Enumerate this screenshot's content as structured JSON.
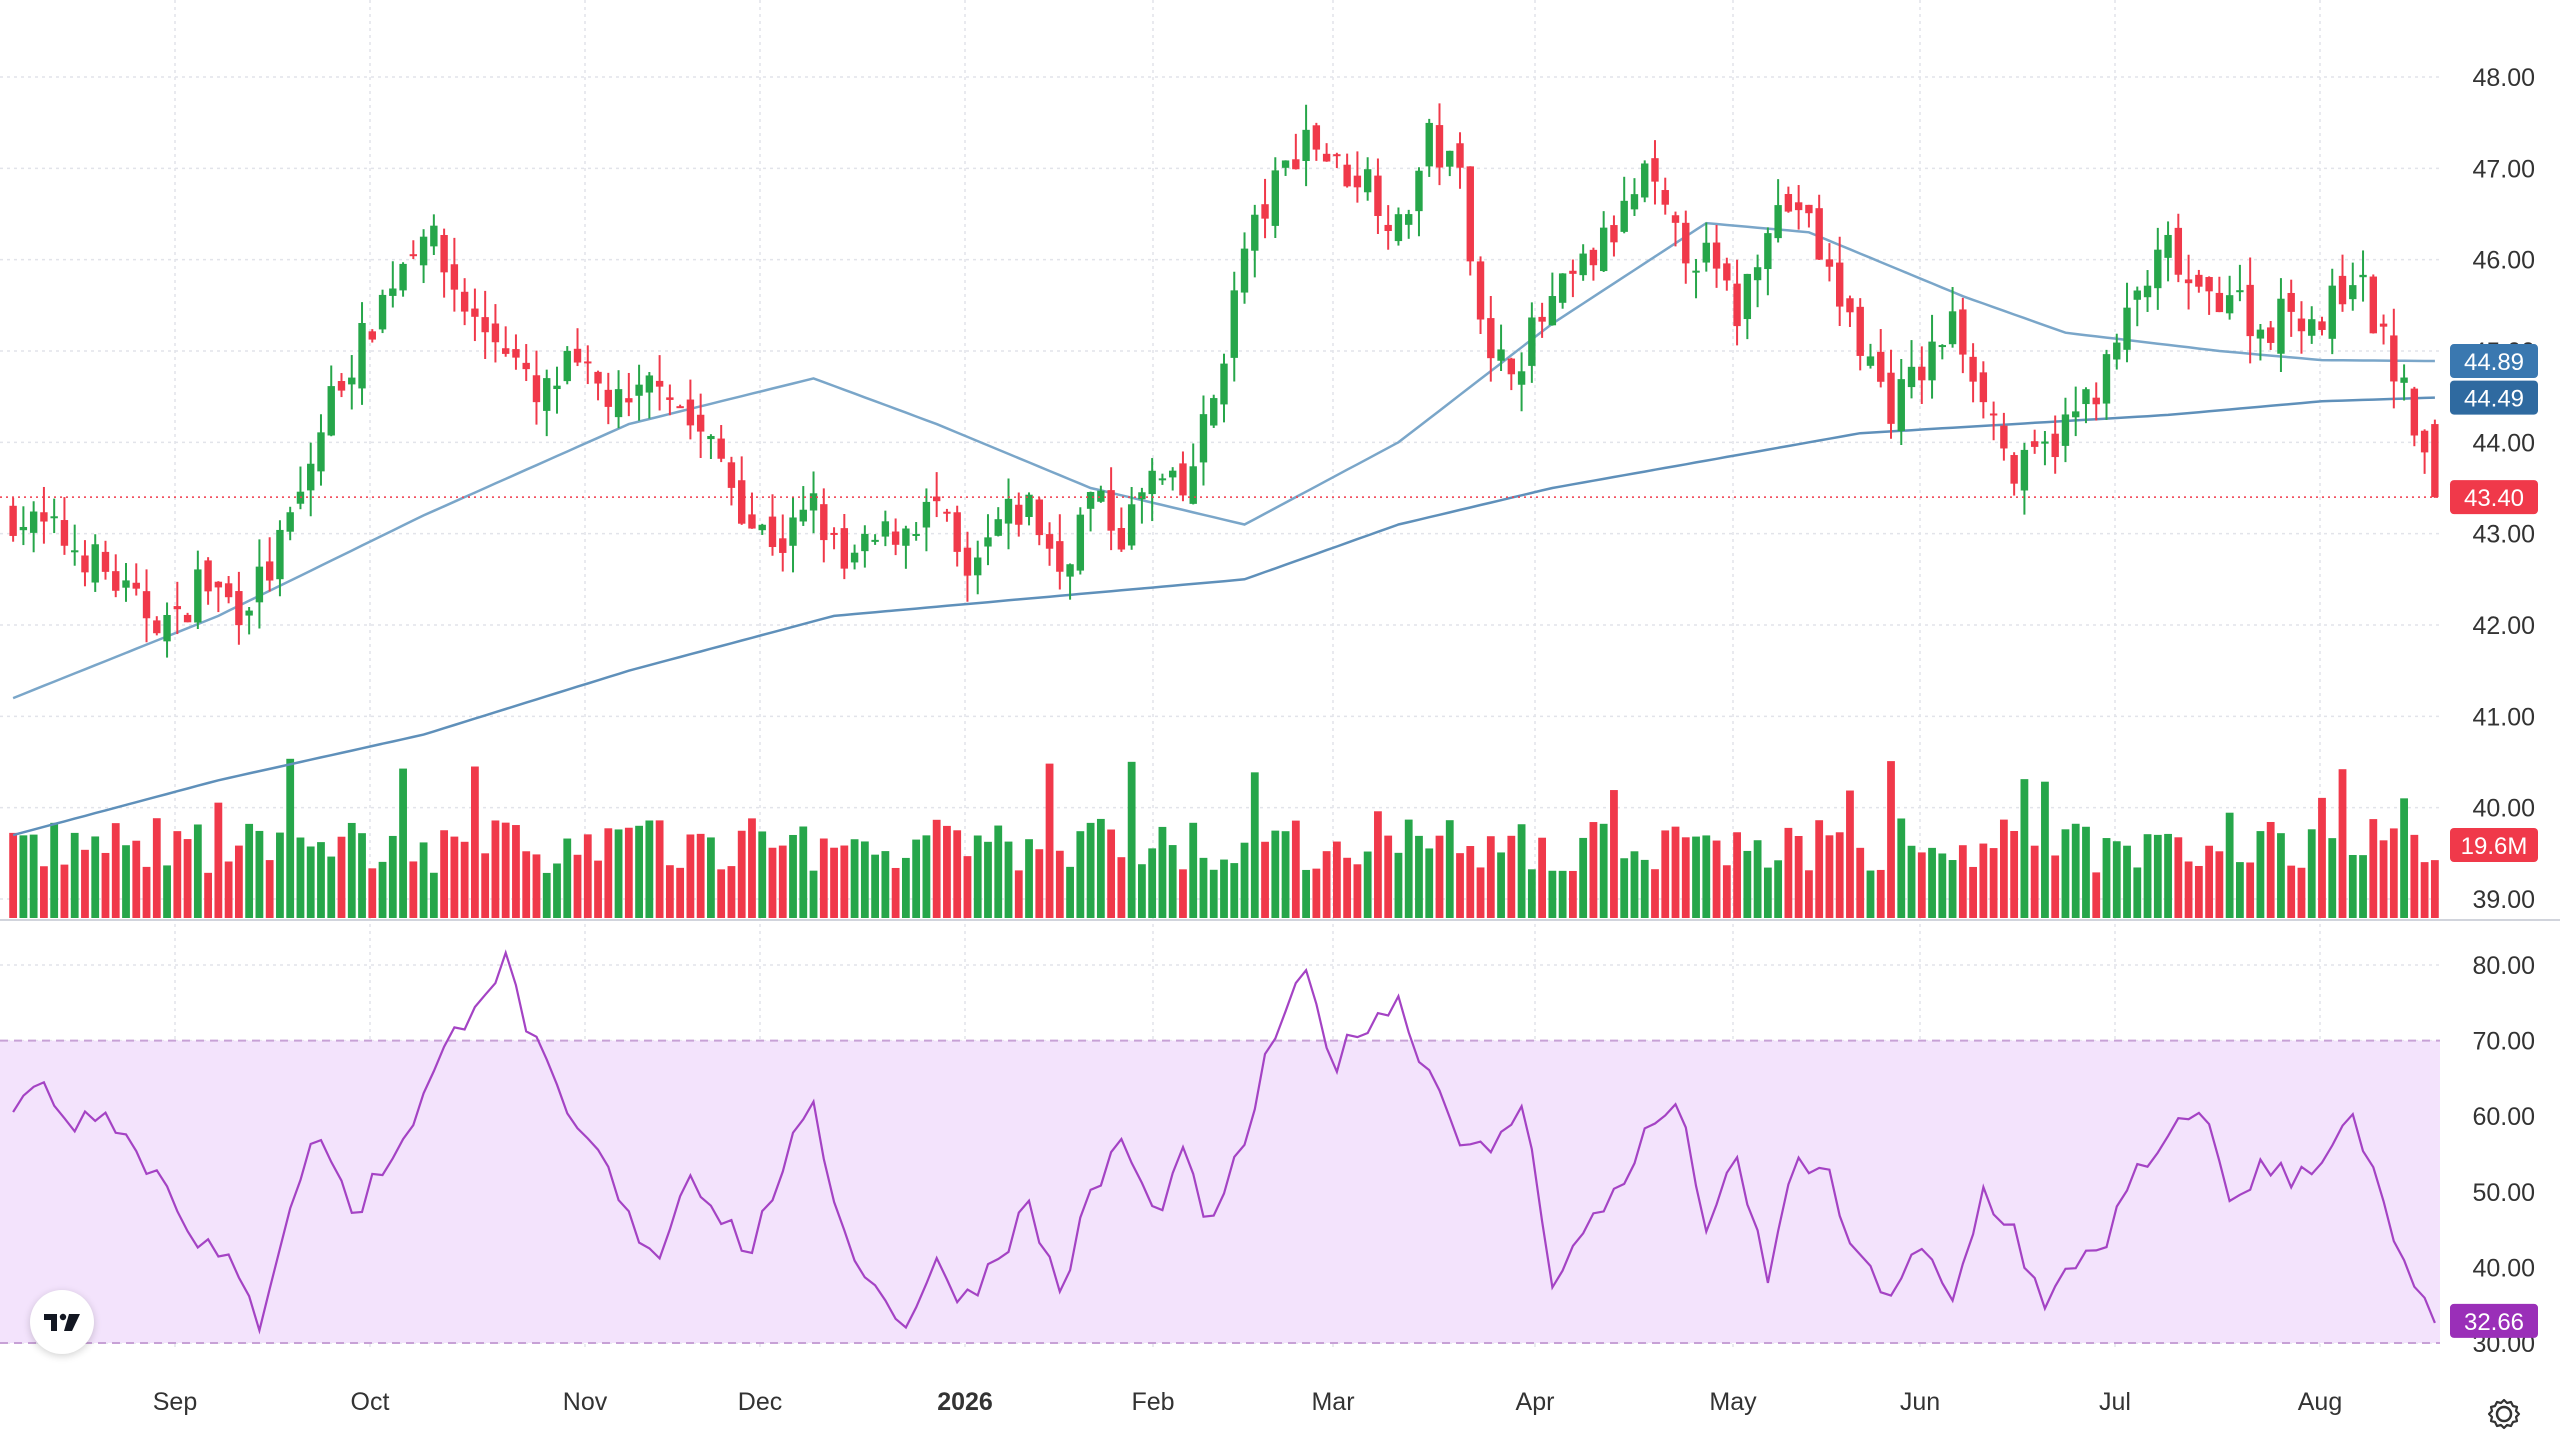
{
  "colors": {
    "up": "#26a64a",
    "down": "#f0394a",
    "ma_fast": "#7aa6c9",
    "ma_slow": "#5f90ba",
    "rsi_line": "#a443c4",
    "rsi_band": "#f3e3fc",
    "price_line": "#f0394a",
    "grid": "#e2e4ea",
    "axis_text": "#333333",
    "badge_ma_fast": "#3a78b0",
    "badge_ma_slow": "#2f6aa0",
    "badge_price": "#f0394a",
    "badge_volume": "#f0394a",
    "badge_rsi": "#9a2fb8"
  },
  "badges": {
    "ma_fast": "44.89",
    "ma_slow": "44.49",
    "last_price": "43.40",
    "volume": "19.6M",
    "rsi": "32.66"
  },
  "price_axis_labels": [
    "48.00",
    "47.00",
    "46.00",
    "45.00",
    "44.00",
    "43.00",
    "42.00",
    "41.00",
    "40.00",
    "39.00"
  ],
  "rsi_axis_labels": [
    "80.00",
    "70.00",
    "60.00",
    "50.00",
    "40.00",
    "30.00"
  ],
  "time_axis_labels": [
    "Sep",
    "Oct",
    "Nov",
    "Dec",
    "2026",
    "Feb",
    "Mar",
    "Apr",
    "May",
    "Jun",
    "Jul",
    "Aug"
  ],
  "chart_data": [
    {
      "type": "candlestick",
      "description": "Daily OHLC candles with two moving averages and volume histogram",
      "y_axis": {
        "min": 39.0,
        "max": 48.0,
        "ticks": [
          48,
          47,
          46,
          45,
          44,
          43,
          42,
          41,
          40,
          39
        ]
      },
      "x_axis": {
        "labels": [
          "Sep",
          "Oct",
          "Nov",
          "Dec",
          "2026",
          "Feb",
          "Mar",
          "Apr",
          "May",
          "Jun",
          "Jul",
          "Aug"
        ]
      },
      "last_price": 43.4,
      "close_path": [
        [
          0,
          43.2
        ],
        [
          4,
          43.0
        ],
        [
          8,
          42.7
        ],
        [
          12,
          42.2
        ],
        [
          16,
          42.0
        ],
        [
          18,
          42.5
        ],
        [
          22,
          42.2
        ],
        [
          25,
          42.6
        ],
        [
          28,
          43.4
        ],
        [
          31,
          44.5
        ],
        [
          34,
          45.1
        ],
        [
          37,
          45.8
        ],
        [
          40,
          46.4
        ],
        [
          42,
          45.9
        ],
        [
          45,
          45.3
        ],
        [
          48,
          45.1
        ],
        [
          51,
          44.4
        ],
        [
          54,
          44.8
        ],
        [
          57,
          44.6
        ],
        [
          60,
          44.3
        ],
        [
          63,
          44.8
        ],
        [
          66,
          44.2
        ],
        [
          69,
          43.8
        ],
        [
          72,
          43.1
        ],
        [
          75,
          42.9
        ],
        [
          78,
          43.3
        ],
        [
          81,
          42.6
        ],
        [
          84,
          42.9
        ],
        [
          87,
          43.1
        ],
        [
          90,
          43.3
        ],
        [
          93,
          42.4
        ],
        [
          96,
          43.1
        ],
        [
          99,
          43.3
        ],
        [
          102,
          42.6
        ],
        [
          105,
          43.4
        ],
        [
          108,
          43.0
        ],
        [
          111,
          43.6
        ],
        [
          114,
          43.4
        ],
        [
          117,
          44.5
        ],
        [
          120,
          46.1
        ],
        [
          123,
          46.8
        ],
        [
          126,
          47.4
        ],
        [
          129,
          47.0
        ],
        [
          132,
          46.9
        ],
        [
          135,
          46.3
        ],
        [
          138,
          47.3
        ],
        [
          141,
          46.9
        ],
        [
          144,
          44.8
        ],
        [
          147,
          45.0
        ],
        [
          150,
          45.5
        ],
        [
          153,
          45.9
        ],
        [
          156,
          46.3
        ],
        [
          159,
          46.9
        ],
        [
          162,
          46.2
        ],
        [
          165,
          46.0
        ],
        [
          168,
          45.4
        ],
        [
          171,
          46.5
        ],
        [
          174,
          46.6
        ],
        [
          177,
          45.8
        ],
        [
          180,
          45.1
        ],
        [
          183,
          44.4
        ],
        [
          186,
          44.8
        ],
        [
          189,
          45.3
        ],
        [
          192,
          44.6
        ],
        [
          195,
          43.6
        ],
        [
          198,
          43.9
        ],
        [
          201,
          44.3
        ],
        [
          204,
          44.8
        ],
        [
          207,
          45.6
        ],
        [
          210,
          46.1
        ],
        [
          213,
          45.5
        ],
        [
          216,
          45.7
        ],
        [
          219,
          45.2
        ],
        [
          222,
          45.5
        ],
        [
          225,
          45.3
        ],
        [
          228,
          45.9
        ],
        [
          231,
          45.1
        ],
        [
          234,
          44.2
        ],
        [
          236,
          43.4
        ]
      ],
      "moving_averages": [
        {
          "label": "44.89",
          "points": [
            [
              0,
              41.2
            ],
            [
              20,
              42.1
            ],
            [
              40,
              43.2
            ],
            [
              60,
              44.2
            ],
            [
              78,
              44.7
            ],
            [
              90,
              44.2
            ],
            [
              105,
              43.5
            ],
            [
              120,
              43.1
            ],
            [
              135,
              44.0
            ],
            [
              150,
              45.3
            ],
            [
              165,
              46.4
            ],
            [
              175,
              46.3
            ],
            [
              190,
              45.6
            ],
            [
              200,
              45.2
            ],
            [
              215,
              45.0
            ],
            [
              225,
              44.9
            ],
            [
              236,
              44.89
            ]
          ]
        },
        {
          "label": "44.49",
          "points": [
            [
              0,
              39.7
            ],
            [
              20,
              40.3
            ],
            [
              40,
              40.8
            ],
            [
              60,
              41.5
            ],
            [
              80,
              42.1
            ],
            [
              100,
              42.3
            ],
            [
              120,
              42.5
            ],
            [
              135,
              43.1
            ],
            [
              150,
              43.5
            ],
            [
              165,
              43.8
            ],
            [
              180,
              44.1
            ],
            [
              195,
              44.2
            ],
            [
              210,
              44.3
            ],
            [
              225,
              44.45
            ],
            [
              236,
              44.49
            ]
          ]
        }
      ],
      "volume": {
        "last": "19.6M",
        "unit": "shares"
      }
    },
    {
      "type": "line",
      "description": "RSI oscillator",
      "y_axis": {
        "min": 30,
        "max": 80,
        "ticks": [
          80,
          70,
          60,
          50,
          40,
          30
        ]
      },
      "band": [
        30,
        70
      ],
      "last_value": 32.66,
      "points": [
        [
          0,
          61
        ],
        [
          3,
          64
        ],
        [
          6,
          59
        ],
        [
          9,
          62
        ],
        [
          12,
          55
        ],
        [
          15,
          51
        ],
        [
          18,
          44
        ],
        [
          21,
          40
        ],
        [
          24,
          33
        ],
        [
          27,
          49
        ],
        [
          30,
          58
        ],
        [
          33,
          47
        ],
        [
          36,
          53
        ],
        [
          39,
          60
        ],
        [
          42,
          68
        ],
        [
          45,
          76
        ],
        [
          48,
          80
        ],
        [
          51,
          69
        ],
        [
          54,
          59
        ],
        [
          57,
          55
        ],
        [
          60,
          46
        ],
        [
          63,
          42
        ],
        [
          66,
          53
        ],
        [
          69,
          47
        ],
        [
          72,
          42
        ],
        [
          75,
          54
        ],
        [
          78,
          60
        ],
        [
          81,
          45
        ],
        [
          84,
          37
        ],
        [
          87,
          33
        ],
        [
          90,
          40
        ],
        [
          93,
          36
        ],
        [
          96,
          42
        ],
        [
          99,
          48
        ],
        [
          102,
          37
        ],
        [
          105,
          49
        ],
        [
          108,
          57
        ],
        [
          111,
          47
        ],
        [
          114,
          54
        ],
        [
          117,
          45
        ],
        [
          120,
          57
        ],
        [
          123,
          71
        ],
        [
          126,
          78
        ],
        [
          129,
          67
        ],
        [
          132,
          73
        ],
        [
          135,
          75
        ],
        [
          138,
          66
        ],
        [
          141,
          58
        ],
        [
          144,
          54
        ],
        [
          147,
          62
        ],
        [
          150,
          39
        ],
        [
          153,
          44
        ],
        [
          156,
          50
        ],
        [
          159,
          57
        ],
        [
          162,
          62
        ],
        [
          165,
          46
        ],
        [
          168,
          53
        ],
        [
          171,
          39
        ],
        [
          174,
          55
        ],
        [
          177,
          51
        ],
        [
          180,
          40
        ],
        [
          183,
          37
        ],
        [
          186,
          42
        ],
        [
          189,
          35
        ],
        [
          192,
          50
        ],
        [
          195,
          45
        ],
        [
          198,
          34
        ],
        [
          201,
          41
        ],
        [
          204,
          44
        ],
        [
          207,
          52
        ],
        [
          210,
          56
        ],
        [
          213,
          62
        ],
        [
          216,
          49
        ],
        [
          219,
          53
        ],
        [
          222,
          52
        ],
        [
          225,
          55
        ],
        [
          228,
          59
        ],
        [
          231,
          48
        ],
        [
          234,
          36
        ],
        [
          236,
          32.66
        ]
      ]
    }
  ]
}
